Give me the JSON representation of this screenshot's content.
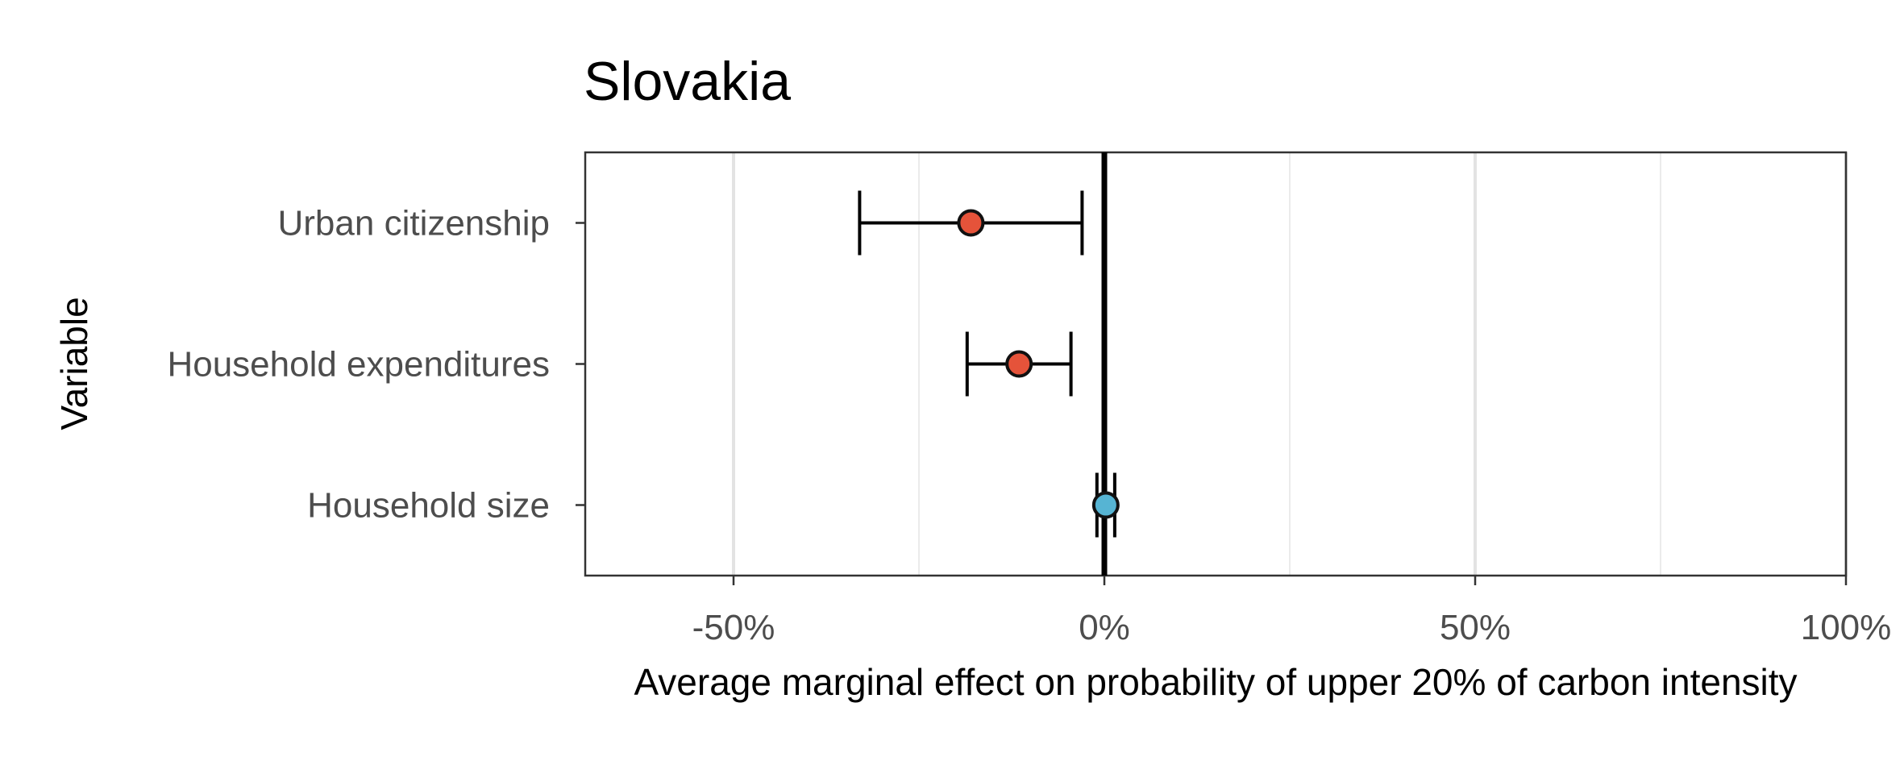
{
  "chart_data": {
    "type": "scatter",
    "title": "Slovakia",
    "xlabel": "Average marginal effect on probability of upper 20% of carbon intensity",
    "ylabel": "Variable",
    "xlim": [
      -0.7,
      1.0
    ],
    "x_ticks": [
      {
        "value": -0.5,
        "label": "-50%"
      },
      {
        "value": 0.0,
        "label": "0%"
      },
      {
        "value": 0.5,
        "label": "50%"
      },
      {
        "value": 1.0,
        "label": "100%"
      }
    ],
    "x_minor_gridlines": [
      -0.25,
      0.25,
      0.75
    ],
    "grid": true,
    "reference_line": 0.0,
    "categories": [
      "Urban citizenship",
      "Household expenditures",
      "Household size"
    ],
    "points": [
      {
        "variable": "Urban citizenship",
        "estimate": -0.18,
        "ci_low": -0.33,
        "ci_high": -0.03,
        "color": "#e5533a"
      },
      {
        "variable": "Household expenditures",
        "estimate": -0.115,
        "ci_low": -0.185,
        "ci_high": -0.045,
        "color": "#e5533a"
      },
      {
        "variable": "Household size",
        "estimate": 0.002,
        "ci_low": -0.01,
        "ci_high": 0.014,
        "color": "#56b4d3"
      }
    ]
  }
}
